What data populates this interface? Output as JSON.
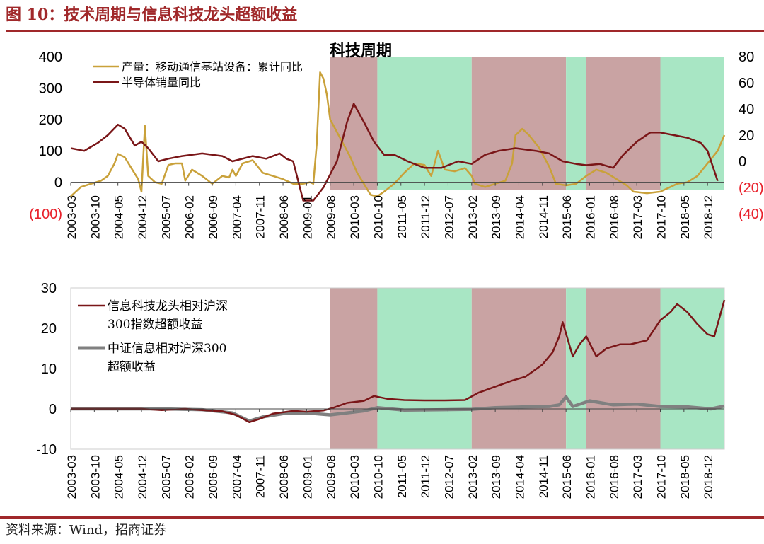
{
  "figure": {
    "title": "图 10：技术周期与信息科技龙头超额收益",
    "source": "资料来源：Wind，招商证券"
  },
  "colors": {
    "brand": "#a0282a",
    "text": "#222222",
    "left_axis_text": "#000000",
    "right_axis_text": "#e8202a",
    "down_cycle_band": "#c9a3a3",
    "up_cycle_band": "#a8e6c4"
  },
  "chart_data": [
    {
      "type": "line",
      "title": "科技周期",
      "xlabel": "",
      "ylabel": "",
      "x_tick_labels": [
        "2003-03",
        "2003-10",
        "2004-05",
        "2004-12",
        "2005-07",
        "2006-02",
        "2006-09",
        "2007-04",
        "2007-11",
        "2008-06",
        "2009-01",
        "2009-08",
        "2010-03",
        "2010-10",
        "2011-05",
        "2011-12",
        "2012-07",
        "2013-02",
        "2013-09",
        "2014-04",
        "2014-11",
        "2015-06",
        "2016-01",
        "2016-08",
        "2017-03",
        "2017-10",
        "2018-05",
        "2018-12"
      ],
      "x_range": [
        "2003-03",
        "2019-05"
      ],
      "y_left": {
        "ylim": [
          -100,
          400
        ],
        "ticks": [
          400,
          300,
          200,
          100,
          0,
          -100
        ],
        "tick_labels": [
          "400",
          "300",
          "200",
          "100",
          "0",
          "(100)"
        ]
      },
      "y_right": {
        "ylim": [
          -40,
          80
        ],
        "ticks": [
          80,
          60,
          40,
          20,
          0,
          -20,
          -40
        ],
        "tick_labels": [
          "80",
          "60",
          "40",
          "20",
          "0",
          "(20)",
          "(40)"
        ]
      },
      "grid": false,
      "legend_position": "top-left",
      "bands": [
        {
          "start": "2009-08",
          "end": "2010-10",
          "phase": "down"
        },
        {
          "start": "2010-10",
          "end": "2013-02",
          "phase": "up"
        },
        {
          "start": "2013-02",
          "end": "2015-06",
          "phase": "down"
        },
        {
          "start": "2015-06",
          "end": "2015-12",
          "phase": "up"
        },
        {
          "start": "2015-12",
          "end": "2017-10",
          "phase": "down"
        },
        {
          "start": "2017-10",
          "end": "2019-05",
          "phase": "up"
        }
      ],
      "series": [
        {
          "name": "产量：移动通信基站设备：累计同比",
          "axis": "left",
          "color": "#c9a13a",
          "points": [
            [
              "2003-03",
              -45
            ],
            [
              "2003-06",
              -15
            ],
            [
              "2003-09",
              -5
            ],
            [
              "2003-12",
              5
            ],
            [
              "2004-02",
              20
            ],
            [
              "2004-04",
              60
            ],
            [
              "2004-05",
              90
            ],
            [
              "2004-07",
              80
            ],
            [
              "2004-09",
              45
            ],
            [
              "2004-11",
              10
            ],
            [
              "2004-12",
              -30
            ],
            [
              "2005-01",
              180
            ],
            [
              "2005-02",
              20
            ],
            [
              "2005-04",
              0
            ],
            [
              "2005-06",
              -5
            ],
            [
              "2005-08",
              55
            ],
            [
              "2005-10",
              60
            ],
            [
              "2005-12",
              60
            ],
            [
              "2006-01",
              5
            ],
            [
              "2006-03",
              40
            ],
            [
              "2006-06",
              20
            ],
            [
              "2006-09",
              -5
            ],
            [
              "2006-12",
              20
            ],
            [
              "2007-02",
              15
            ],
            [
              "2007-03",
              40
            ],
            [
              "2007-04",
              20
            ],
            [
              "2007-06",
              60
            ],
            [
              "2007-09",
              70
            ],
            [
              "2007-12",
              30
            ],
            [
              "2008-03",
              20
            ],
            [
              "2008-06",
              10
            ],
            [
              "2008-09",
              -5
            ],
            [
              "2008-12",
              -5
            ],
            [
              "2009-02",
              0
            ],
            [
              "2009-03",
              -5
            ],
            [
              "2009-04",
              120
            ],
            [
              "2009-05",
              350
            ],
            [
              "2009-06",
              330
            ],
            [
              "2009-07",
              280
            ],
            [
              "2009-08",
              200
            ],
            [
              "2009-10",
              160
            ],
            [
              "2009-12",
              120
            ],
            [
              "2010-02",
              80
            ],
            [
              "2010-04",
              30
            ],
            [
              "2010-06",
              -5
            ],
            [
              "2010-08",
              -40
            ],
            [
              "2010-10",
              -45
            ],
            [
              "2010-12",
              -30
            ],
            [
              "2011-03",
              -5
            ],
            [
              "2011-06",
              30
            ],
            [
              "2011-09",
              60
            ],
            [
              "2011-12",
              55
            ],
            [
              "2012-02",
              20
            ],
            [
              "2012-04",
              100
            ],
            [
              "2012-06",
              40
            ],
            [
              "2012-09",
              35
            ],
            [
              "2012-12",
              45
            ],
            [
              "2013-02",
              20
            ],
            [
              "2013-03",
              -5
            ],
            [
              "2013-06",
              -15
            ],
            [
              "2013-09",
              -5
            ],
            [
              "2013-12",
              5
            ],
            [
              "2014-02",
              60
            ],
            [
              "2014-03",
              150
            ],
            [
              "2014-04",
              160
            ],
            [
              "2014-05",
              170
            ],
            [
              "2014-07",
              150
            ],
            [
              "2014-10",
              110
            ],
            [
              "2015-01",
              50
            ],
            [
              "2015-03",
              -5
            ],
            [
              "2015-06",
              -10
            ],
            [
              "2015-09",
              -5
            ],
            [
              "2015-12",
              20
            ],
            [
              "2016-03",
              40
            ],
            [
              "2016-06",
              30
            ],
            [
              "2016-09",
              10
            ],
            [
              "2016-12",
              -10
            ],
            [
              "2017-02",
              -30
            ],
            [
              "2017-06",
              -35
            ],
            [
              "2017-10",
              -30
            ],
            [
              "2018-01",
              -15
            ],
            [
              "2018-03",
              -5
            ],
            [
              "2018-06",
              0
            ],
            [
              "2018-09",
              20
            ],
            [
              "2018-12",
              60
            ],
            [
              "2019-03",
              100
            ],
            [
              "2019-05",
              150
            ]
          ]
        },
        {
          "name": "半导体销量同比",
          "axis": "right",
          "color": "#7a1618",
          "points": [
            [
              "2003-03",
              10
            ],
            [
              "2003-07",
              8
            ],
            [
              "2003-11",
              14
            ],
            [
              "2004-02",
              20
            ],
            [
              "2004-05",
              28
            ],
            [
              "2004-07",
              25
            ],
            [
              "2004-10",
              12
            ],
            [
              "2004-12",
              15
            ],
            [
              "2005-02",
              10
            ],
            [
              "2005-05",
              0
            ],
            [
              "2005-08",
              2
            ],
            [
              "2005-12",
              4
            ],
            [
              "2006-06",
              6
            ],
            [
              "2006-12",
              4
            ],
            [
              "2007-03",
              0
            ],
            [
              "2007-09",
              4
            ],
            [
              "2008-01",
              2
            ],
            [
              "2008-05",
              6
            ],
            [
              "2008-07",
              2
            ],
            [
              "2008-09",
              0
            ],
            [
              "2008-12",
              -30
            ],
            [
              "2009-03",
              -30
            ],
            [
              "2009-06",
              -20
            ],
            [
              "2009-10",
              0
            ],
            [
              "2010-01",
              30
            ],
            [
              "2010-03",
              44
            ],
            [
              "2010-06",
              30
            ],
            [
              "2010-09",
              15
            ],
            [
              "2010-12",
              5
            ],
            [
              "2011-03",
              5
            ],
            [
              "2011-07",
              0
            ],
            [
              "2011-12",
              -5
            ],
            [
              "2012-05",
              -5
            ],
            [
              "2012-10",
              0
            ],
            [
              "2013-02",
              -2
            ],
            [
              "2013-06",
              5
            ],
            [
              "2013-10",
              8
            ],
            [
              "2014-03",
              10
            ],
            [
              "2014-09",
              8
            ],
            [
              "2015-01",
              6
            ],
            [
              "2015-05",
              0
            ],
            [
              "2015-09",
              -2
            ],
            [
              "2015-12",
              -3
            ],
            [
              "2016-04",
              -2
            ],
            [
              "2016-08",
              -5
            ],
            [
              "2016-11",
              5
            ],
            [
              "2017-03",
              15
            ],
            [
              "2017-07",
              22
            ],
            [
              "2017-10",
              22
            ],
            [
              "2018-02",
              20
            ],
            [
              "2018-06",
              18
            ],
            [
              "2018-10",
              14
            ],
            [
              "2018-12",
              8
            ],
            [
              "2019-03",
              -15
            ]
          ]
        }
      ]
    },
    {
      "type": "line",
      "title": "",
      "xlabel": "",
      "ylabel": "",
      "x_tick_labels": [
        "2003-03",
        "2003-10",
        "2004-05",
        "2004-12",
        "2005-07",
        "2006-02",
        "2006-09",
        "2007-04",
        "2007-11",
        "2008-06",
        "2009-01",
        "2009-08",
        "2010-03",
        "2010-10",
        "2011-05",
        "2011-12",
        "2012-07",
        "2013-02",
        "2013-09",
        "2014-04",
        "2014-11",
        "2015-06",
        "2016-01",
        "2016-08",
        "2017-03",
        "2017-10",
        "2018-05",
        "2018-12"
      ],
      "x_range": [
        "2003-03",
        "2019-05"
      ],
      "ylim": [
        -10,
        30
      ],
      "y_ticks": [
        30,
        20,
        10,
        0,
        -10
      ],
      "grid": false,
      "legend_position": "top-left",
      "bands": [
        {
          "start": "2009-08",
          "end": "2010-10",
          "phase": "down"
        },
        {
          "start": "2010-10",
          "end": "2013-02",
          "phase": "up"
        },
        {
          "start": "2013-02",
          "end": "2015-06",
          "phase": "down"
        },
        {
          "start": "2015-06",
          "end": "2015-12",
          "phase": "up"
        },
        {
          "start": "2015-12",
          "end": "2017-10",
          "phase": "down"
        },
        {
          "start": "2017-10",
          "end": "2019-05",
          "phase": "up"
        }
      ],
      "series": [
        {
          "name": "信息科技龙头相对沪深300指数超额收益",
          "color": "#7a1618",
          "width": 2.5,
          "points": [
            [
              "2003-03",
              0
            ],
            [
              "2004-12",
              0
            ],
            [
              "2005-06",
              -0.3
            ],
            [
              "2006-01",
              0
            ],
            [
              "2006-06",
              -0.3
            ],
            [
              "2006-12",
              -0.6
            ],
            [
              "2007-04",
              -1.5
            ],
            [
              "2007-08",
              -3.3
            ],
            [
              "2007-11",
              -2.5
            ],
            [
              "2008-03",
              -1.2
            ],
            [
              "2008-09",
              -0.5
            ],
            [
              "2009-01",
              -0.7
            ],
            [
              "2009-06",
              -0.4
            ],
            [
              "2009-09",
              0.3
            ],
            [
              "2010-01",
              1.5
            ],
            [
              "2010-06",
              2
            ],
            [
              "2010-09",
              3.2
            ],
            [
              "2011-01",
              2.5
            ],
            [
              "2011-06",
              2.2
            ],
            [
              "2011-12",
              2.1
            ],
            [
              "2012-06",
              2.1
            ],
            [
              "2012-12",
              2.2
            ],
            [
              "2013-04",
              4
            ],
            [
              "2013-09",
              5.5
            ],
            [
              "2014-02",
              7
            ],
            [
              "2014-06",
              8
            ],
            [
              "2014-11",
              11
            ],
            [
              "2015-02",
              14
            ],
            [
              "2015-04",
              18
            ],
            [
              "2015-05",
              21.5
            ],
            [
              "2015-08",
              13
            ],
            [
              "2015-10",
              16
            ],
            [
              "2015-12",
              18
            ],
            [
              "2016-03",
              13
            ],
            [
              "2016-06",
              15
            ],
            [
              "2016-10",
              16
            ],
            [
              "2017-01",
              16
            ],
            [
              "2017-06",
              17
            ],
            [
              "2017-10",
              22
            ],
            [
              "2018-01",
              24
            ],
            [
              "2018-03",
              26
            ],
            [
              "2018-06",
              24
            ],
            [
              "2018-09",
              21
            ],
            [
              "2018-12",
              18.5
            ],
            [
              "2019-02",
              18
            ],
            [
              "2019-05",
              27
            ]
          ]
        },
        {
          "name": "中证信息相对沪深300超额收益",
          "color": "#808080",
          "width": 4.5,
          "points": [
            [
              "2003-03",
              0
            ],
            [
              "2005-06",
              0
            ],
            [
              "2006-06",
              -0.2
            ],
            [
              "2007-03",
              -1
            ],
            [
              "2007-08",
              -3
            ],
            [
              "2007-12",
              -2
            ],
            [
              "2008-06",
              -1.2
            ],
            [
              "2009-01",
              -1
            ],
            [
              "2009-08",
              -1.5
            ],
            [
              "2010-06",
              -0.5
            ],
            [
              "2010-10",
              0.3
            ],
            [
              "2011-06",
              -0.3
            ],
            [
              "2012-06",
              -0.2
            ],
            [
              "2013-02",
              -0.1
            ],
            [
              "2013-09",
              0.3
            ],
            [
              "2014-06",
              0.5
            ],
            [
              "2015-01",
              0.6
            ],
            [
              "2015-04",
              1
            ],
            [
              "2015-06",
              3
            ],
            [
              "2015-08",
              0.6
            ],
            [
              "2016-01",
              2
            ],
            [
              "2016-08",
              1
            ],
            [
              "2017-03",
              1.2
            ],
            [
              "2017-10",
              0.6
            ],
            [
              "2018-06",
              0.5
            ],
            [
              "2019-01",
              0
            ],
            [
              "2019-05",
              0.7
            ]
          ]
        }
      ]
    }
  ]
}
